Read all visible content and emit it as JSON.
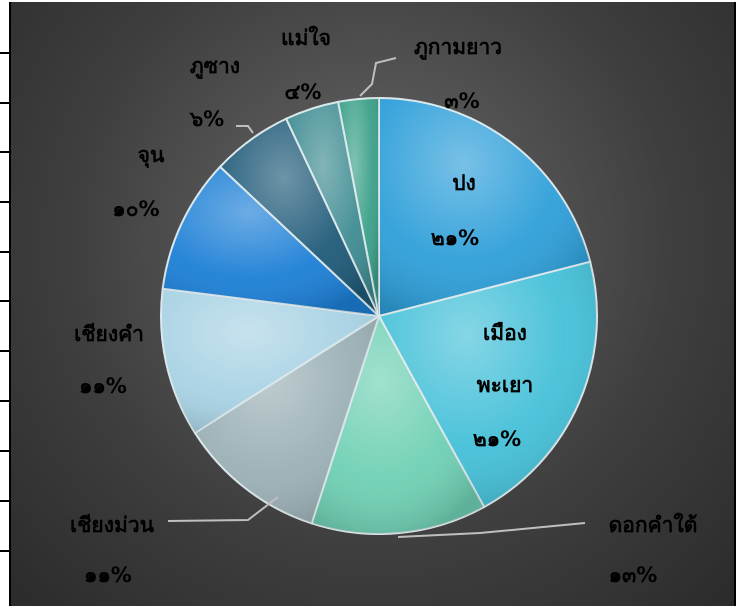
{
  "chart_data": {
    "type": "pie",
    "title": "",
    "slices": [
      {
        "name": "ปง",
        "value": 21,
        "label": "๒๑%",
        "color": "#2e9fd9"
      },
      {
        "name": "เมือง พะเยา",
        "name_lines": [
          "เมือง",
          "พะเยา"
        ],
        "value": 21,
        "label": "๒๑%",
        "color": "#44c0d8"
      },
      {
        "name": "ดอกคำใต้",
        "value": 13,
        "label": "๑๓%",
        "color": "#6fd0b4"
      },
      {
        "name": "เชียงม่วน",
        "value": 11,
        "label": "๑๑%",
        "color": "#9bb0b5"
      },
      {
        "name": "เชียงคำ",
        "value": 11,
        "label": "๑๑%",
        "color": "#a8d2e4"
      },
      {
        "name": "จุน",
        "value": 10,
        "label": "๑๐%",
        "color": "#1c7fd6"
      },
      {
        "name": "ภูซาง",
        "value": 6,
        "label": "๖%",
        "color": "#1f5a78"
      },
      {
        "name": "แม่ใจ",
        "value": 4,
        "label": "๔%",
        "color": "#3e8c92"
      },
      {
        "name": "ภูกามยาว",
        "value": 3,
        "label": "๓%",
        "color": "#3aa088"
      }
    ],
    "legend": "none"
  }
}
